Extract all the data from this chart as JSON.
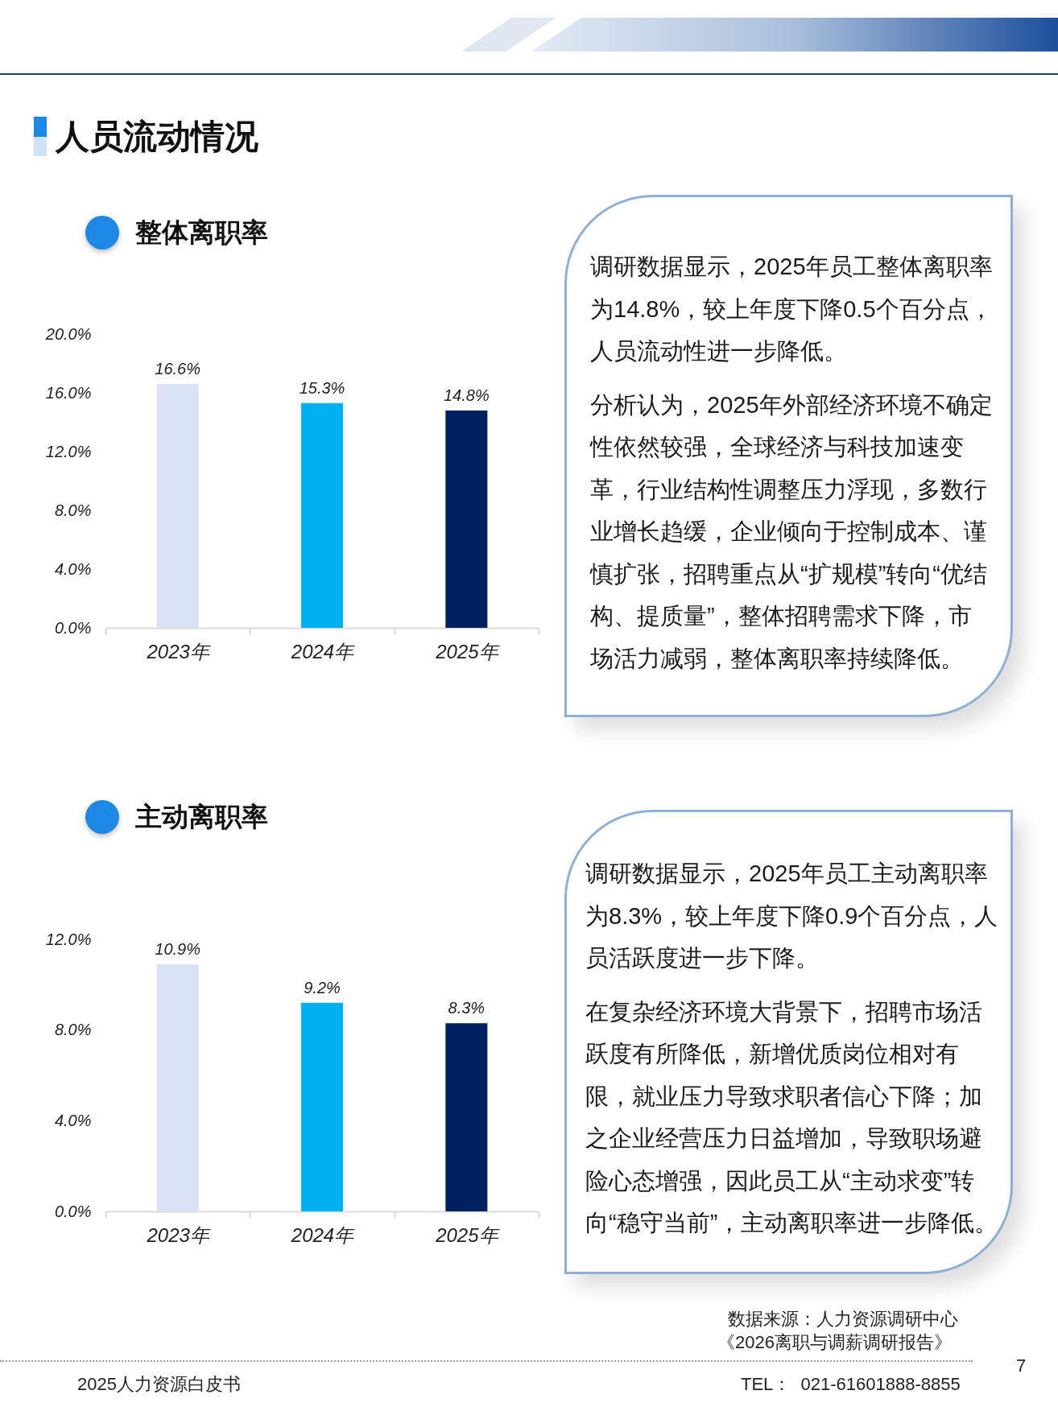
{
  "chart_data": [
    {
      "type": "other",
      "title": "人员流动情况"
    },
    {
      "type": "bar",
      "title": "整体离职率",
      "categories": [
        "2023年",
        "2024年",
        "2025年"
      ],
      "values": [
        16.6,
        15.3,
        14.8
      ],
      "colors": [
        "#dae3f3",
        "#00b0f0",
        "#002060"
      ],
      "value_labels": [
        "16.6%",
        "15.3%",
        "14.8%"
      ],
      "ylim": [
        0,
        20
      ],
      "yticks": [
        {
          "value": 0,
          "label": "0.0%"
        },
        {
          "value": 4,
          "label": "4.0%"
        },
        {
          "value": 8,
          "label": "8.0%"
        },
        {
          "value": 12,
          "label": "12.0%"
        },
        {
          "value": 16,
          "label": "16.0%"
        },
        {
          "value": 20,
          "label": "20.0%"
        }
      ],
      "grid": false
    },
    {
      "type": "other",
      "annotations": [
        "调研数据显示，2025年员工整体离职率为14.8%，较上年度下降0.5个百分点，人员流动性进一步降低。",
        "分析认为，2025年外部经济环境不确定性依然较强，全球经济与科技加速变革，行业结构性调整压力浮现，多数行业增长趋缓，企业倾向于控制成本、谨慎扩张，招聘重点从“扩规模”转向“优结构、提质量”，整体招聘需求下降，市场活力减弱，整体离职率持续降低。"
      ]
    },
    {
      "type": "bar",
      "title": "主动离职率",
      "categories": [
        "2023年",
        "2024年",
        "2025年"
      ],
      "values": [
        10.9,
        9.2,
        8.3
      ],
      "colors": [
        "#dae3f3",
        "#00b0f0",
        "#002060"
      ],
      "value_labels": [
        "10.9%",
        "9.2%",
        "8.3%"
      ],
      "ylim": [
        0,
        12
      ],
      "yticks": [
        {
          "value": 0,
          "label": "0.0%"
        },
        {
          "value": 4,
          "label": "4.0%"
        },
        {
          "value": 8,
          "label": "8.0%"
        },
        {
          "value": 12,
          "label": "12.0%"
        }
      ],
      "grid": false
    },
    {
      "type": "other",
      "annotations": [
        "调研数据显示，2025年员工主动离职率为8.3%，较上年度下降0.9个百分点，人员活跃度进一步下降。",
        "在复杂经济环境大背景下，招聘市场活跃度有所降低，新增优质岗位相对有限，就业压力导致求职者信心下降；加之企业经营压力日益增加，导致职场避险心态增强，因此员工从“主动求变”转向“稳守当前”，主动离职率进一步降低。"
      ]
    },
    {
      "type": "other",
      "annotations": [
        "数据来源：人力资源调研中心",
        "《2026离职与调薪调研报告》",
        "2025人力资源白皮书",
        "TEL：  021-61601888-8855",
        "7"
      ]
    }
  ]
}
